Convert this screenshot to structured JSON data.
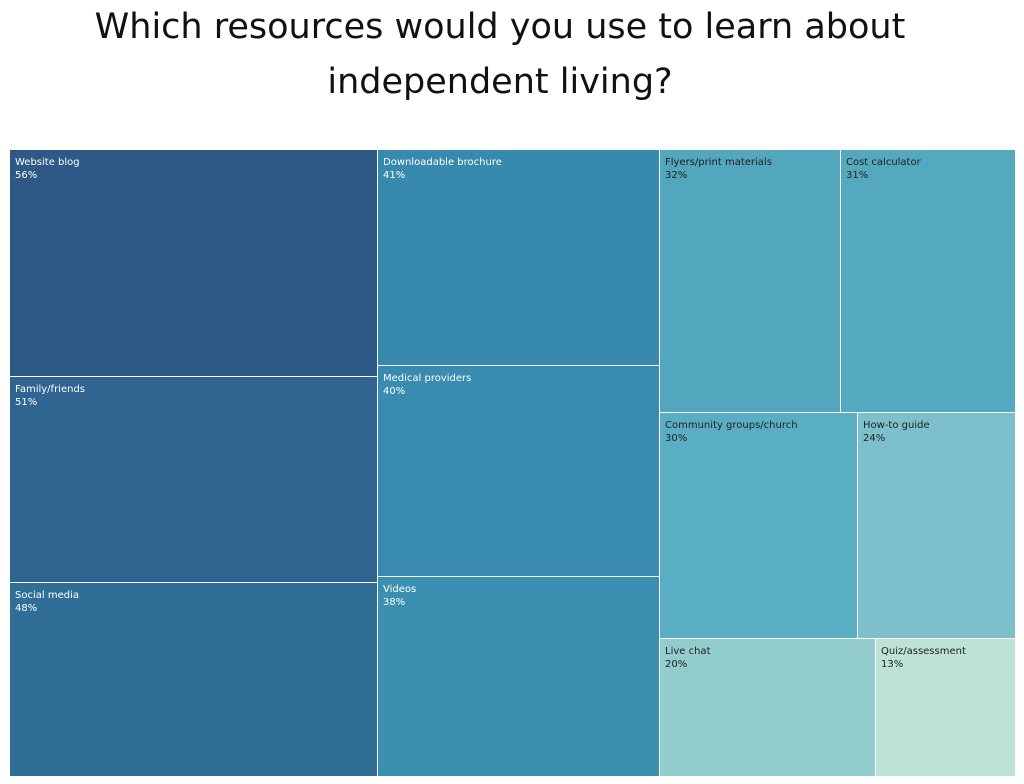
{
  "chart_data": {
    "type": "treemap",
    "title_lines": [
      "Which resources would you use to learn about",
      "independent living?"
    ],
    "items": [
      {
        "label": "Website blog",
        "value": 56,
        "value_label": "56%",
        "color": "#2e5885",
        "text_color": "#ffffff"
      },
      {
        "label": "Family/friends",
        "value": 51,
        "value_label": "51%",
        "color": "#2f6590",
        "text_color": "#ffffff"
      },
      {
        "label": "Social media",
        "value": 48,
        "value_label": "48%",
        "color": "#306e97",
        "text_color": "#ffffff"
      },
      {
        "label": "Downloadable brochure",
        "value": 41,
        "value_label": "41%",
        "color": "#3889ae",
        "text_color": "#ffffff"
      },
      {
        "label": "Medical providers",
        "value": 40,
        "value_label": "40%",
        "color": "#398bb0",
        "text_color": "#ffffff"
      },
      {
        "label": "Videos",
        "value": 38,
        "value_label": "38%",
        "color": "#3b90b2",
        "text_color": "#ffffff"
      },
      {
        "label": "Flyers/print materials",
        "value": 32,
        "value_label": "32%",
        "color": "#52a6bd",
        "text_color": "#222222"
      },
      {
        "label": "Cost calculator",
        "value": 31,
        "value_label": "31%",
        "color": "#54a9bf",
        "text_color": "#222222"
      },
      {
        "label": "Community groups/church",
        "value": 30,
        "value_label": "30%",
        "color": "#5aaec3",
        "text_color": "#222222"
      },
      {
        "label": "How-to guide",
        "value": 24,
        "value_label": "24%",
        "color": "#7dc0cb",
        "text_color": "#222222"
      },
      {
        "label": "Live chat",
        "value": 20,
        "value_label": "20%",
        "color": "#93cccd",
        "text_color": "#222222"
      },
      {
        "label": "Quiz/assessment",
        "value": 13,
        "value_label": "13%",
        "color": "#bde3d7",
        "text_color": "#222222"
      }
    ]
  }
}
